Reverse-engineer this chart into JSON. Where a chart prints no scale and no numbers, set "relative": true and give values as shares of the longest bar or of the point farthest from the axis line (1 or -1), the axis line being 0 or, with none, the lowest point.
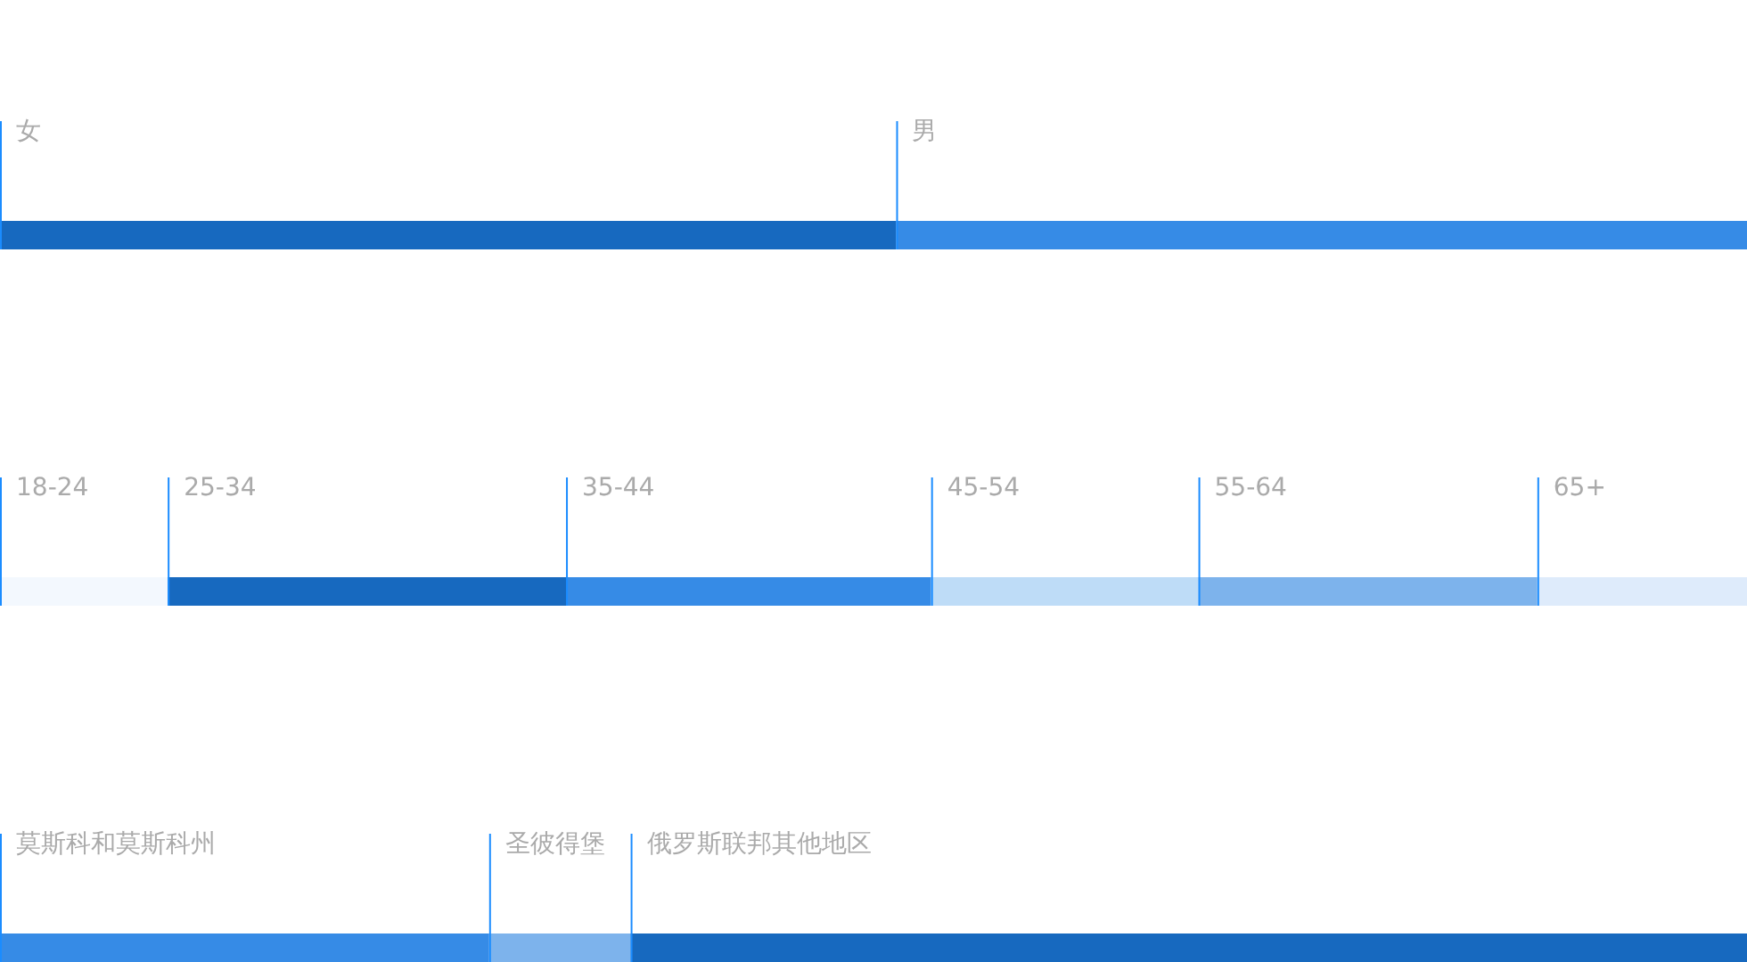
{
  "chart_data": [
    {
      "type": "bar",
      "orientation": "horizontal",
      "stacked": true,
      "relative": true,
      "categories": [
        null
      ],
      "series": [
        {
          "name": "女",
          "color": "#1769bf",
          "values": [
            0.513
          ]
        },
        {
          "name": "男",
          "color": "#368be6",
          "values": [
            0.487
          ]
        }
      ]
    },
    {
      "type": "bar",
      "orientation": "horizontal",
      "stacked": true,
      "relative": true,
      "categories": [
        null
      ],
      "series": [
        {
          "name": "18-24",
          "color": "#f3f8fe",
          "values": [
            0.096
          ]
        },
        {
          "name": "25-34",
          "color": "#1769bf",
          "values": [
            0.228
          ]
        },
        {
          "name": "35-44",
          "color": "#368be6",
          "values": [
            0.209
          ]
        },
        {
          "name": "45-54",
          "color": "#bedcf7",
          "values": [
            0.153
          ]
        },
        {
          "name": "55-64",
          "color": "#7db3ec",
          "values": [
            0.194
          ]
        },
        {
          "name": "65+",
          "color": "#deebfb",
          "values": [
            0.12
          ]
        }
      ]
    },
    {
      "type": "bar",
      "orientation": "horizontal",
      "stacked": true,
      "relative": true,
      "categories": [
        null
      ],
      "series": [
        {
          "name": "莫斯科和莫斯科州",
          "color": "#368be6",
          "values": [
            0.28
          ]
        },
        {
          "name": "圣彼得堡",
          "color": "#7db3ec",
          "values": [
            0.081
          ]
        },
        {
          "name": "俄罗斯联邦其他地区",
          "color": "#1769bf",
          "values": [
            0.639
          ]
        }
      ]
    }
  ]
}
